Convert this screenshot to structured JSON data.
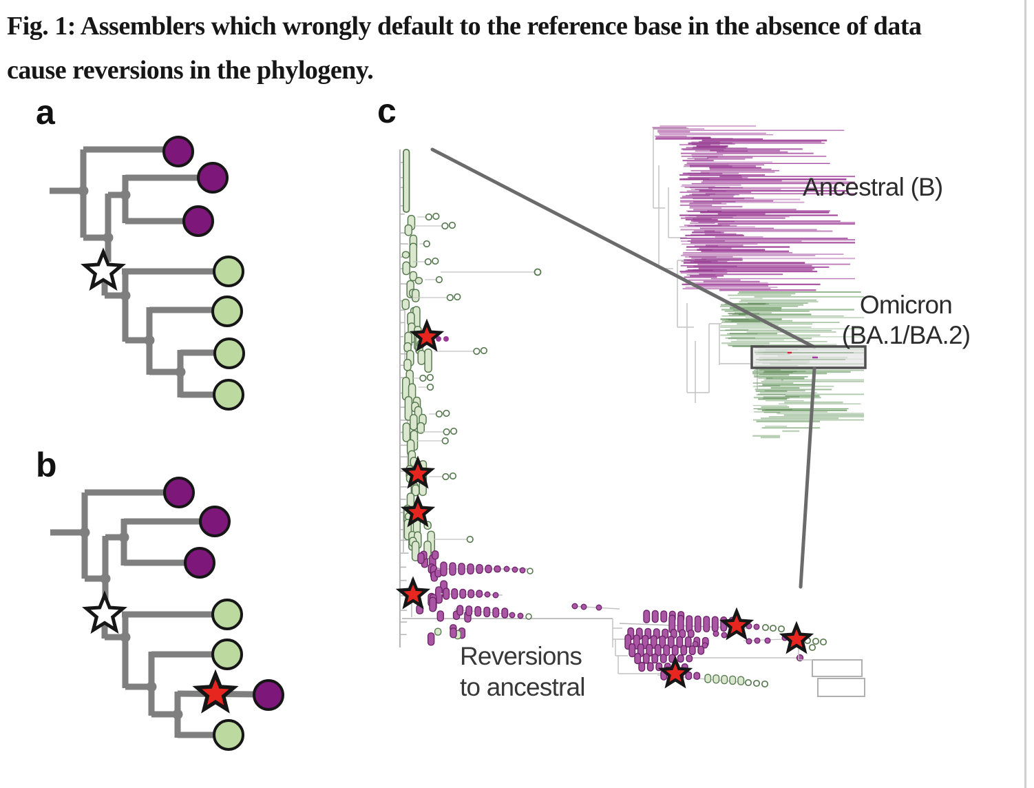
{
  "caption": {
    "line1": "Fig. 1: Assemblers which wrongly default to the reference base in the absence of data",
    "line2": "cause reversions in the phylogeny."
  },
  "panel_a": {
    "label": "a",
    "tips": [
      "purple",
      "purple",
      "purple",
      "green",
      "green",
      "green",
      "green"
    ],
    "node_marker": "white-star"
  },
  "panel_b": {
    "label": "b",
    "tips": [
      "purple",
      "purple",
      "purple",
      "green",
      "green",
      "purple",
      "green"
    ],
    "node_marker": "white-star",
    "reversion_marker": "red-star"
  },
  "panel_c": {
    "label": "c",
    "labels": {
      "ancestral": "Ancestral (B)",
      "omicron_l1": "Omicron",
      "omicron_l2": "(BA.1/BA.2)",
      "reversions_l1": "Reversions",
      "reversions_l2": "to ancestral"
    },
    "ancestral_rows": 115,
    "omicron_rows": 92,
    "red_star_count": 7,
    "zoom_box": true
  },
  "colors": {
    "branch_gray": "#7f7f7f",
    "outline": "#161616",
    "purple": "#7d1779",
    "green": "#bcd9a0",
    "star_white": "#ffffff",
    "star_red": "#e6261f",
    "c_purple": "#9c3b95",
    "c_purple_dark": "#8b2d86",
    "c_green": "#6f9e68",
    "c_green_dark": "#567f4e",
    "pill_green_fill": "#dbe8cf",
    "pill_green_stroke": "#587a50",
    "pill_purple_fill": "#aa56a4",
    "pill_purple_stroke": "#6b2468",
    "skeleton": "#c2c2c2",
    "trunk": "#b8b8b8",
    "connector": "#6b6b6b",
    "box_stroke": "#4f4f4f",
    "divider": "#cfcfcf",
    "label_text": "#2c2c2c"
  }
}
